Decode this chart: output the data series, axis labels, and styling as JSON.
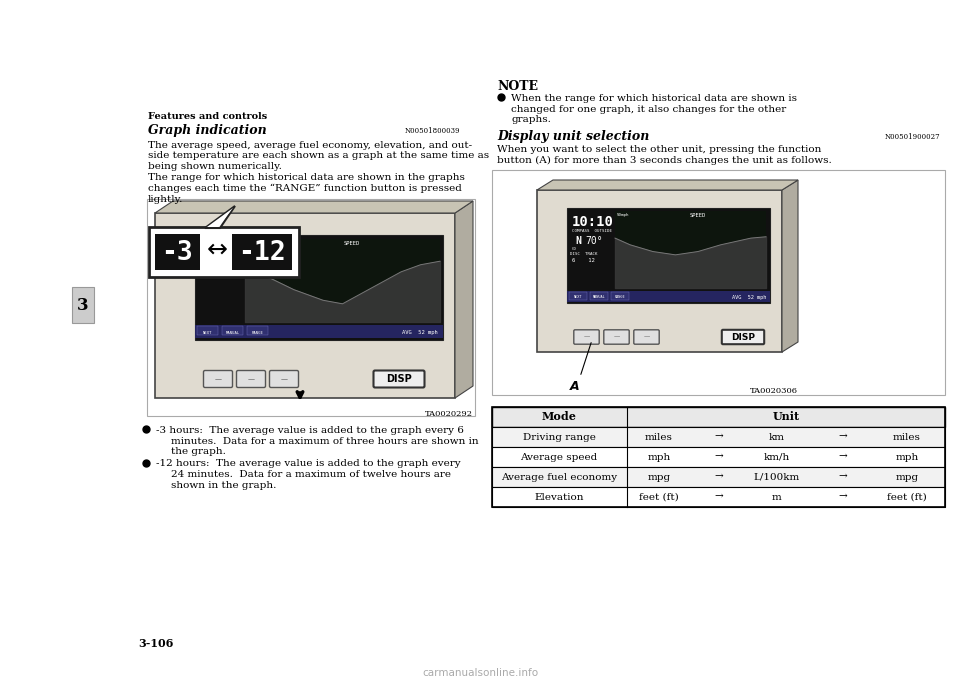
{
  "bg_color": "#ffffff",
  "page_number": "3-106",
  "tab_label": "3",
  "header_text": "Features and controls",
  "section1_title": "Graph indication",
  "section1_code": "N00501800039",
  "section1_body1": [
    "The average speed, average fuel economy, elevation, and out-",
    "side temperature are each shown as a graph at the same time as",
    "being shown numerically."
  ],
  "section1_body2": [
    "The range for which historical data are shown in the graphs",
    "changes each time the “RANGE” function button is pressed",
    "lightly."
  ],
  "bullet1_line1": "-3 hours:  The average value is added to the graph every 6",
  "bullet1_line2": "minutes.  Data for a maximum of three hours are shown in",
  "bullet1_line3": "the graph.",
  "bullet2_line1": "-12 hours:  The average value is added to the graph every",
  "bullet2_line2": "24 minutes.  Data for a maximum of twelve hours are",
  "bullet2_line3": "shown in the graph.",
  "image1_caption": "TA0020292",
  "note_title": "NOTE",
  "note_bullet1": "When the range for which historical data are shown is",
  "note_bullet2": "changed for one graph, it also changes for the other",
  "note_bullet3": "graphs.",
  "section2_title": "Display unit selection",
  "section2_code": "N00501900027",
  "section2_body1": "When you want to select the other unit, pressing the function",
  "section2_body2": "button (A) for more than 3 seconds changes the unit as follows.",
  "image2_caption": "TA0020306",
  "image2_label": "A",
  "table_header_mode": "Mode",
  "table_header_unit": "Unit",
  "table_rows": [
    [
      "Driving range",
      "miles",
      "→",
      "km",
      "→",
      "miles"
    ],
    [
      "Average speed",
      "mph",
      "→",
      "km/h",
      "→",
      "mph"
    ],
    [
      "Average fuel economy",
      "mpg",
      "→",
      "L/100km",
      "→",
      "mpg"
    ],
    [
      "Elevation",
      "feet (ft)",
      "→",
      "m",
      "→",
      "feet (ft)"
    ]
  ],
  "beige": "#e0dbd0",
  "dark_gray_3d": "#b0aca0",
  "screen_bg": "#111111",
  "screen_graph_bg": "#0d150d",
  "bar_blue": "#252560",
  "bar_btn": "#303070"
}
